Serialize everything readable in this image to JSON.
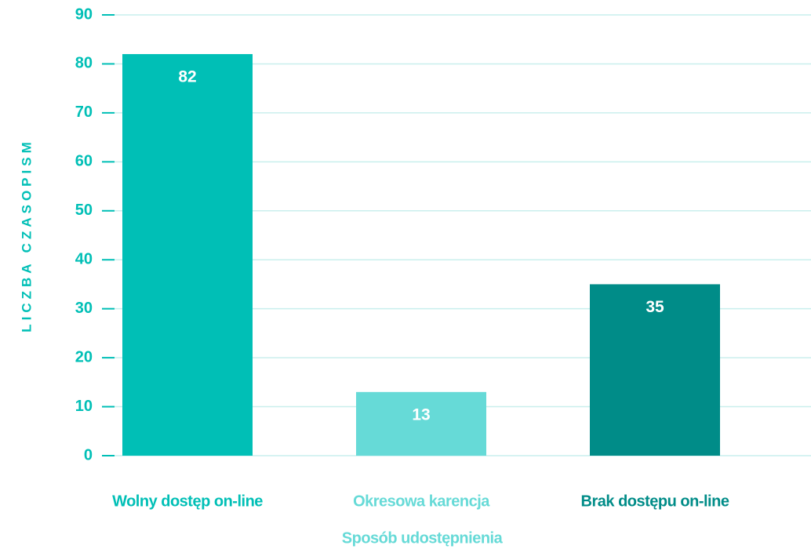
{
  "chart_data": {
    "type": "bar",
    "categories": [
      "Wolny dostęp on-line",
      "Okresowa karencja",
      "Brak dostępu on-line"
    ],
    "values": [
      82,
      13,
      35
    ],
    "colors": [
      "#00bfb6",
      "#66dad7",
      "#008c88"
    ],
    "x_label": "Sposób udostępnienia",
    "y_label": "LICZBA CZASOPISM",
    "ylim": [
      0,
      90
    ],
    "yticks": [
      0,
      10,
      20,
      30,
      40,
      50,
      60,
      70,
      80,
      90
    ],
    "grid": true
  }
}
